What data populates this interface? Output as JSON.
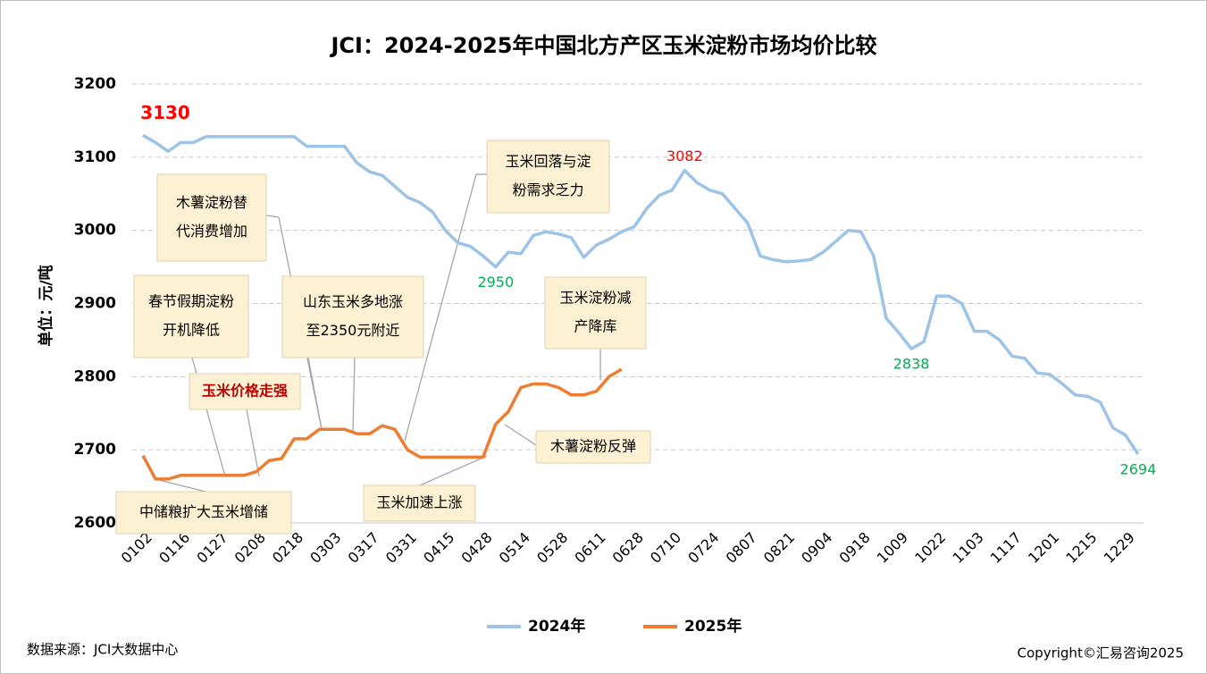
{
  "chart_data": {
    "type": "line",
    "title": "JCI：2024-2025年中国北方产区玉米淀粉市场均价比较",
    "y_label": "单位：元/吨",
    "source": "数据来源：JCI大数据中心",
    "copyright": "Copyright©汇易咨询2025",
    "categories": [
      "0102",
      null,
      null,
      "0116",
      null,
      null,
      "0127",
      null,
      null,
      "0208",
      null,
      null,
      "0218",
      null,
      null,
      "0303",
      null,
      null,
      "0317",
      null,
      null,
      "0331",
      null,
      null,
      "0415",
      null,
      null,
      "0428",
      null,
      null,
      "0514",
      null,
      null,
      "0528",
      null,
      null,
      "0611",
      null,
      null,
      "0628",
      null,
      null,
      "0710",
      null,
      null,
      "0724",
      null,
      null,
      "0807",
      null,
      null,
      "0821",
      null,
      null,
      "0904",
      null,
      null,
      "0918",
      null,
      null,
      "1009",
      null,
      null,
      "1022",
      null,
      null,
      "1103",
      null,
      null,
      "1117",
      null,
      null,
      "1201",
      null,
      null,
      "1215",
      null,
      null,
      "1229",
      null
    ],
    "series": [
      {
        "name": "2024年",
        "color": "#9dc3e6",
        "values": [
          3130,
          3120,
          3108,
          3120,
          3120,
          3128,
          3128,
          3128,
          3128,
          3128,
          3128,
          3128,
          3128,
          3115,
          3115,
          3115,
          3115,
          3092,
          3080,
          3075,
          3060,
          3045,
          3038,
          3025,
          3000,
          2983,
          2978,
          2965,
          2950,
          2970,
          2968,
          2993,
          2998,
          2995,
          2990,
          2963,
          2980,
          2988,
          2998,
          3005,
          3030,
          3048,
          3055,
          3082,
          3065,
          3055,
          3050,
          3030,
          3010,
          2965,
          2960,
          2957,
          2958,
          2960,
          2970,
          2985,
          3000,
          2998,
          2965,
          2880,
          2860,
          2838,
          2848,
          2910,
          2910,
          2900,
          2862,
          2862,
          2850,
          2828,
          2825,
          2805,
          2803,
          2790,
          2775,
          2773,
          2765,
          2730,
          2720,
          2694
        ],
        "labeled_points": [
          {
            "index": 0,
            "color": "#ff0000",
            "position": "above"
          },
          {
            "index": 43,
            "color": "#ff0000",
            "position": "above"
          },
          {
            "index": 28,
            "color": "#00b050",
            "position": "below"
          },
          {
            "index": 61,
            "color": "#00b050",
            "position": "below"
          },
          {
            "index": 79,
            "color": "#00b050",
            "position": "below"
          }
        ]
      },
      {
        "name": "2025年",
        "color": "#ed7d31",
        "values": [
          2692,
          2660,
          2660,
          2665,
          2665,
          2665,
          2665,
          2665,
          2665,
          2670,
          2685,
          2688,
          2715,
          2715,
          2728,
          2728,
          2728,
          2722,
          2722,
          2733,
          2728,
          2700,
          2690,
          2690,
          2690,
          2690,
          2690,
          2690,
          2735,
          2752,
          2785,
          2790,
          2790,
          2785,
          2775,
          2775,
          2780,
          2800,
          2810,
          null,
          null,
          null,
          null,
          null,
          null,
          null,
          null,
          null,
          null,
          null,
          null,
          null,
          null,
          null,
          null,
          null,
          null,
          null,
          null,
          null,
          null,
          null,
          null,
          null,
          null,
          null,
          null,
          null,
          null,
          null,
          null,
          null,
          null,
          null,
          null,
          null,
          null,
          null,
          null,
          null
        ]
      }
    ],
    "ylim": [
      2600,
      3200
    ],
    "yticks": [
      2600,
      2700,
      2800,
      2900,
      3000,
      3100,
      3200
    ],
    "grid": true,
    "legend": "bottom",
    "annotations": [
      {
        "text": [
          "木薯淀粉替",
          "代消费增加"
        ]
      },
      {
        "text": [
          "春节假期淀粉",
          "开机降低"
        ]
      },
      {
        "text": [
          "玉米价格走强"
        ]
      },
      {
        "text": [
          "山东玉米多地涨",
          "至2350元附近"
        ]
      },
      {
        "text": [
          "玉米回落与淀",
          "粉需求乏力"
        ]
      },
      {
        "text": [
          "玉米淀粉减",
          "产降库"
        ]
      },
      {
        "text": [
          "木薯淀粉反弹"
        ]
      },
      {
        "text": [
          "玉米加速上涨"
        ]
      },
      {
        "text": [
          "中储粮扩大玉米增储"
        ]
      }
    ]
  }
}
